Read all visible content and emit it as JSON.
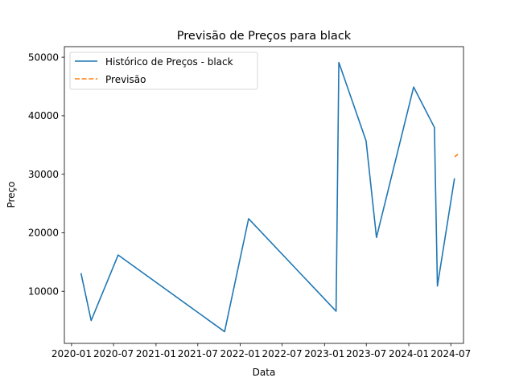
{
  "chart_data": {
    "type": "line",
    "title": "Previsão de Preços para black",
    "xlabel": "Data",
    "ylabel": "Preço",
    "xlim": [
      "2019-12-01",
      "2024-08-25"
    ],
    "ylim": [
      1100,
      51800
    ],
    "x_ticks": [
      {
        "date": "2020-01-01",
        "label": "2020-01"
      },
      {
        "date": "2020-07-01",
        "label": "2020-07"
      },
      {
        "date": "2021-01-01",
        "label": "2021-01"
      },
      {
        "date": "2021-07-01",
        "label": "2021-07"
      },
      {
        "date": "2022-01-01",
        "label": "2022-01"
      },
      {
        "date": "2022-07-01",
        "label": "2022-07"
      },
      {
        "date": "2023-01-01",
        "label": "2023-01"
      },
      {
        "date": "2023-07-01",
        "label": "2023-07"
      },
      {
        "date": "2024-01-01",
        "label": "2024-01"
      },
      {
        "date": "2024-07-01",
        "label": "2024-07"
      }
    ],
    "y_ticks": [
      10000,
      20000,
      30000,
      40000,
      50000
    ],
    "grid": false,
    "legend_position": "top-left",
    "series": [
      {
        "name": "Histórico de Preços - black",
        "color": "#1f77b4",
        "style": "solid",
        "points": [
          {
            "x": "2020-02-11",
            "y": 13100
          },
          {
            "x": "2020-03-26",
            "y": 5000
          },
          {
            "x": "2020-07-21",
            "y": 16200
          },
          {
            "x": "2021-10-25",
            "y": 3100
          },
          {
            "x": "2022-02-06",
            "y": 22400
          },
          {
            "x": "2023-02-20",
            "y": 6600
          },
          {
            "x": "2023-03-04",
            "y": 49100
          },
          {
            "x": "2023-06-30",
            "y": 35700
          },
          {
            "x": "2023-08-14",
            "y": 19200
          },
          {
            "x": "2024-01-22",
            "y": 44900
          },
          {
            "x": "2024-04-21",
            "y": 38000
          },
          {
            "x": "2024-05-04",
            "y": 10900
          },
          {
            "x": "2024-07-17",
            "y": 29300
          }
        ]
      },
      {
        "name": "Previsão",
        "color": "#ff7f0e",
        "style": "dashed",
        "points": [
          {
            "x": "2024-07-18",
            "y": 33000
          },
          {
            "x": "2024-08-01",
            "y": 33400
          }
        ]
      }
    ]
  }
}
